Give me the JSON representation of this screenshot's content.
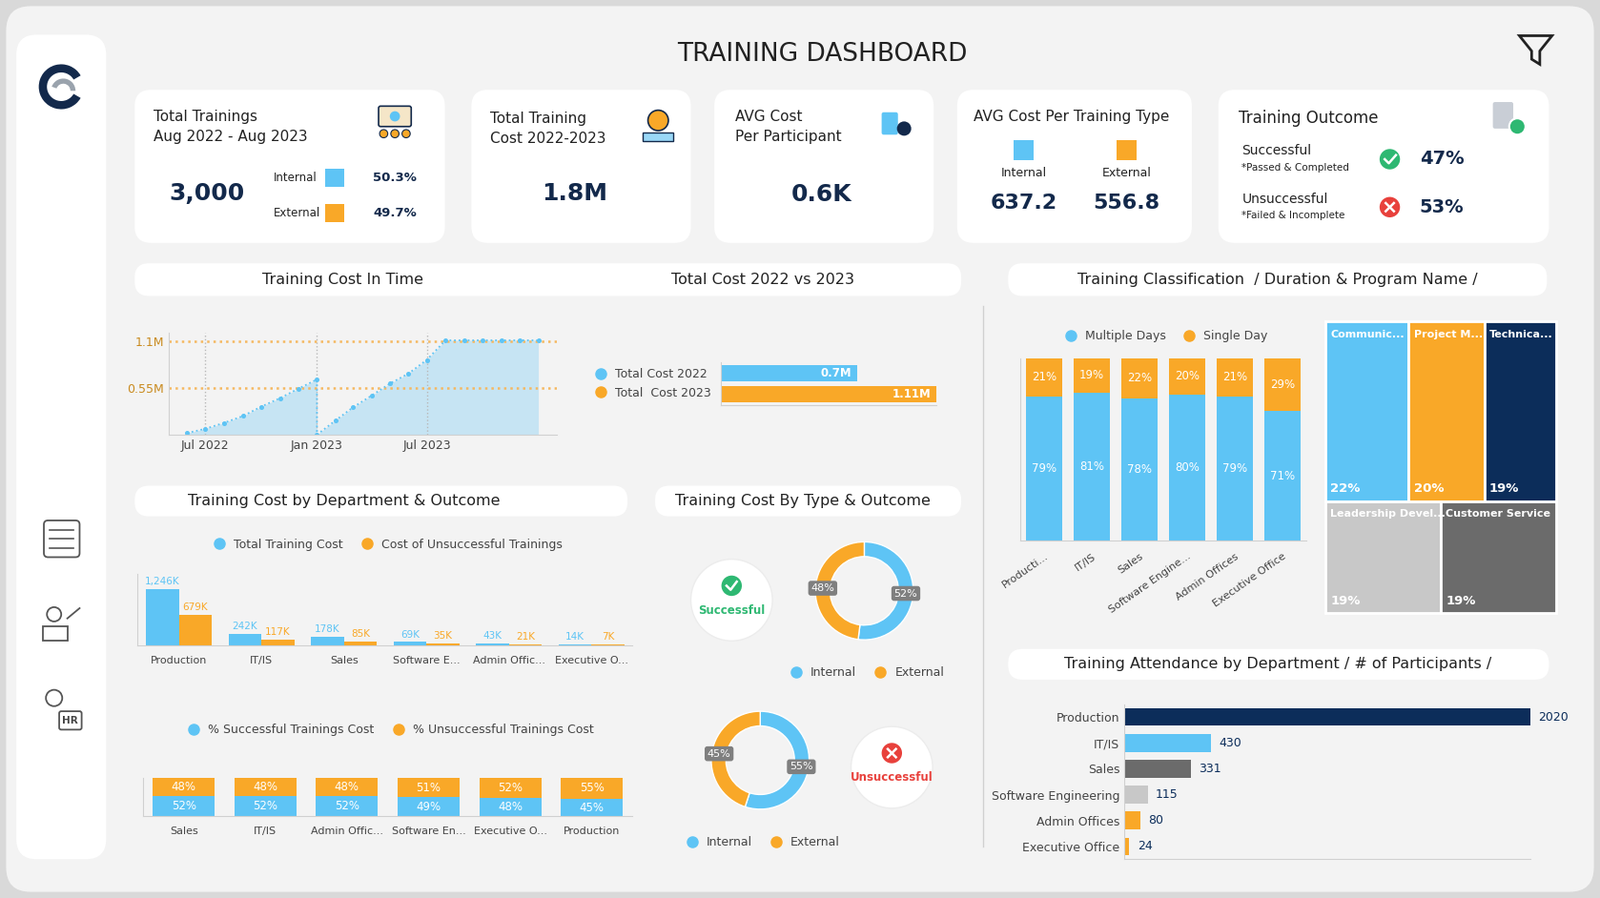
{
  "title": "TRAINING DASHBOARD",
  "sidebar": {
    "icon_text": "HR"
  },
  "cards": [
    {
      "title": "Total Trainings\nAug 2022 - Aug 2023",
      "value": "3,000",
      "breakdown": [
        {
          "name": "Internal",
          "value": "50.3%"
        },
        {
          "name": "External",
          "value": "49.7%"
        }
      ]
    },
    {
      "title": "Total Training\nCost 2022-2023",
      "value": "1.8M"
    },
    {
      "title": "AVG Cost\nPer Participant",
      "value": "0.6K"
    },
    {
      "title": "AVG Cost Per Training Type",
      "breakdown": [
        {
          "name": "Internal",
          "value": "637.2"
        },
        {
          "name": "External",
          "value": "556.8"
        }
      ]
    },
    {
      "title": "Training Outcome",
      "breakdown": [
        {
          "name": "Successful",
          "note": "*Passed & Completed",
          "value": "47%"
        },
        {
          "name": "Unsuccessful",
          "note": "*Failed & Incomplete",
          "value": "53%"
        }
      ]
    }
  ],
  "chart_data": [
    {
      "type": "line",
      "title": "Training Cost In Time",
      "x": [
        "2022-06",
        "2022-07",
        "2022-08",
        "2022-09",
        "2022-10",
        "2022-11",
        "2022-12",
        "2023-01",
        "2023-01",
        "2023-02",
        "2023-03",
        "2023-04",
        "2023-05",
        "2023-06",
        "2023-07",
        "2023-08",
        "2023-09",
        "2023-10",
        "2023-11",
        "2023-12",
        "2024-01"
      ],
      "values": [
        0.02,
        0.07,
        0.14,
        0.22,
        0.33,
        0.43,
        0.54,
        0.65,
        0.0,
        0.17,
        0.32,
        0.46,
        0.6,
        0.72,
        0.88,
        1.11,
        1.11,
        1.11,
        1.11,
        1.11,
        1.11
      ],
      "color": "#5ec4f5",
      "marker": "circle",
      "line_style": "dotted",
      "xlim": [
        "2022-05",
        "2024-02"
      ],
      "xticks": [
        {
          "value": "2022-07",
          "label": "Jul 2022"
        },
        {
          "value": "2023-01",
          "label": "Jan 2023"
        },
        {
          "value": "2023-07",
          "label": "Jul 2023"
        }
      ],
      "ylim": [
        0,
        1.2
      ],
      "yticks": [
        {
          "value": 0.55,
          "label": "0.55M"
        },
        {
          "value": 1.1,
          "label": "1.1M"
        }
      ],
      "grid": true
    },
    {
      "type": "bar",
      "orientation": "horizontal",
      "title": "Total Cost 2022 vs 2023",
      "series": [
        {
          "name": "Total Cost 2022",
          "color": "#5ec4f5",
          "values": [
            0.7
          ],
          "value_labels": [
            "0.7M"
          ]
        },
        {
          "name": "Total  Cost 2023",
          "color": "#f9a828",
          "values": [
            1.11
          ],
          "value_labels": [
            "1.11M"
          ]
        }
      ],
      "xlim": [
        0,
        1.11
      ],
      "xticks": [],
      "tick_labels": false,
      "data_labels": true,
      "legend": "left"
    },
    {
      "type": "bar",
      "stacked": true,
      "title": "Training Classification  / Duration & Program Name /",
      "categories": [
        "Producti...",
        "IT/IS",
        "Sales",
        "Software Engine...",
        "Admin Offices",
        "Executive Office"
      ],
      "series": [
        {
          "name": "Multiple Days",
          "color": "#5ec4f5",
          "values": [
            79,
            81,
            78,
            80,
            79,
            71
          ],
          "value_labels": [
            "79%",
            "81%",
            "78%",
            "80%",
            "79%",
            "71%"
          ]
        },
        {
          "name": "Single Day",
          "color": "#f9a828",
          "values": [
            21,
            19,
            22,
            20,
            21,
            29
          ],
          "value_labels": [
            "21%",
            "19%",
            "22%",
            "20%",
            "21%",
            "29%"
          ]
        }
      ],
      "ylim": [
        0,
        100
      ],
      "yticks": [],
      "tick_labels": "x",
      "data_labels": true,
      "legend": "top"
    },
    {
      "type": "treemap",
      "categories": [
        "Communic...",
        "Project M...",
        "Technica...",
        "Leadership Devel...",
        "Customer Service"
      ],
      "values": [
        22,
        20,
        19,
        19,
        19
      ],
      "value_labels": [
        "22%",
        "20%",
        "19%",
        "19%",
        "19%"
      ],
      "colors": [
        "#5ec4f5",
        "#f9a828",
        "#0c2d5a",
        "#c8c8c8",
        "#6b6b6b"
      ],
      "data_labels": true
    },
    {
      "type": "bar",
      "title": "Training Cost by Department & Outcome",
      "categories": [
        "Production",
        "IT/IS",
        "Sales",
        "Software E...",
        "Admin Offic...",
        "Executive O..."
      ],
      "series": [
        {
          "name": "Total Training Cost",
          "color": "#5ec4f5",
          "values": [
            1246,
            242,
            178,
            69,
            43,
            14
          ],
          "value_labels": [
            "1,246K",
            "242K",
            "178K",
            "69K",
            "43K",
            "14K"
          ]
        },
        {
          "name": "Cost of Unsuccessful Trainings",
          "color": "#f9a828",
          "values": [
            679,
            117,
            85,
            35,
            21,
            7
          ],
          "value_labels": [
            "679K",
            "117K",
            "85K",
            "35K",
            "21K",
            "7K"
          ]
        }
      ],
      "ylim": [
        0,
        1600
      ],
      "yticks": [],
      "tick_labels": "x",
      "data_labels": true,
      "legend": "top"
    },
    {
      "type": "bar",
      "stacked": true,
      "categories": [
        "Sales",
        "IT/IS",
        "Admin Offic...",
        "Software En...",
        "Executive O...",
        "Production"
      ],
      "series": [
        {
          "name": "% Successful Trainings Cost",
          "color": "#5ec4f5",
          "values": [
            52,
            52,
            52,
            49,
            48,
            45
          ],
          "value_labels": [
            "52%",
            "52%",
            "52%",
            "49%",
            "48%",
            "45%"
          ]
        },
        {
          "name": "% Unsuccessful Trainings Cost",
          "color": "#f9a828",
          "values": [
            48,
            48,
            48,
            51,
            52,
            55
          ],
          "value_labels": [
            "48%",
            "48%",
            "48%",
            "51%",
            "52%",
            "55%"
          ]
        }
      ],
      "ylim": [
        0,
        100
      ],
      "yticks": [],
      "tick_labels": "x",
      "data_labels": true,
      "legend": "top"
    },
    {
      "type": "donut",
      "title": "Training Cost By Type & Outcome",
      "categories": [
        "Internal",
        "External"
      ],
      "colors": [
        "#5ec4f5",
        "#f9a828"
      ],
      "groups": [
        {
          "name": "Successful",
          "color": "#2eb872",
          "values": [
            52,
            48
          ],
          "value_labels": [
            "52%",
            "48%"
          ]
        },
        {
          "name": "Unsuccessful",
          "color": "#e8413c",
          "values": [
            55,
            45
          ],
          "value_labels": [
            "55%",
            "45%"
          ]
        }
      ],
      "data_labels": true,
      "legend": "bottom"
    },
    {
      "type": "bar",
      "orientation": "horizontal",
      "title": "Training Attendance by Department / # of Participants /",
      "categories": [
        "Production",
        "IT/IS",
        "Sales",
        "Software Engineering",
        "Admin Offices",
        "Executive Office"
      ],
      "values": [
        2020,
        430,
        331,
        115,
        80,
        24
      ],
      "colors": [
        "#0c2d5a",
        "#5ec4f5",
        "#6b6b6b",
        "#c8c8c8",
        "#f9a828",
        "#f9a828"
      ],
      "xlim": [
        0,
        2020
      ],
      "xticks": [],
      "tick_labels": "y",
      "data_labels": true
    }
  ]
}
